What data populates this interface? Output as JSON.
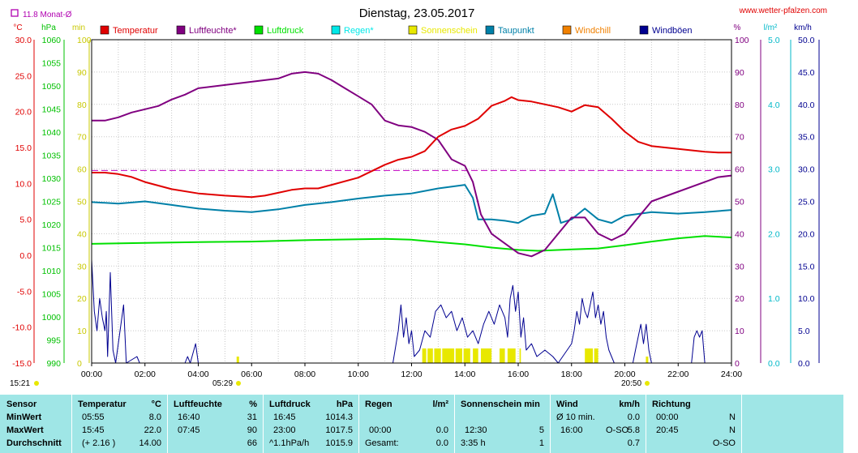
{
  "title": "Dienstag, 23.05.2017",
  "site": "www.wetter-pfalzen.com",
  "month_avg": "11.8 Monat-Ø",
  "unit_labels": {
    "celsius": "°C",
    "hpa": "hPa",
    "min": "min",
    "percent": "%",
    "lm2": "l/m²",
    "kmh": "km/h"
  },
  "legend": [
    {
      "label": "Temperatur",
      "color": "#e00000"
    },
    {
      "label": "Luftfeuchte*",
      "color": "#800080"
    },
    {
      "label": "Luftdruck",
      "color": "#00e000"
    },
    {
      "label": "Regen*",
      "color": "#00e8e8"
    },
    {
      "label": "Sonnenschein",
      "color": "#e8e800"
    },
    {
      "label": "Taupunkt",
      "color": "#0080a8"
    },
    {
      "label": "Windchill",
      "color": "#f08000"
    },
    {
      "label": "Windböen",
      "color": "#000090"
    }
  ],
  "sun": {
    "rise": "05:29",
    "set": "20:50",
    "now": "15:21"
  },
  "chart_data": {
    "type": "line",
    "title": "Dienstag, 23.05.2017",
    "x_ticks": [
      "00:00",
      "02:00",
      "04:00",
      "06:00",
      "08:00",
      "10:00",
      "12:00",
      "14:00",
      "16:00",
      "18:00",
      "20:00",
      "22:00",
      "24:00"
    ],
    "xlim": [
      0,
      24
    ],
    "axes": {
      "temperature": {
        "ticks": [
          "30.0",
          "25.0",
          "20.0",
          "15.0",
          "10.0",
          "5.0",
          "0.0",
          "-5.0",
          "-10.0",
          "-15.0"
        ],
        "ylim": [
          -15,
          30
        ]
      },
      "pressure": {
        "ticks": [
          "1060",
          "1055",
          "1050",
          "1045",
          "1040",
          "1035",
          "1030",
          "1025",
          "1020",
          "1015",
          "1010",
          "1005",
          "1000",
          "995",
          "990"
        ],
        "ylim": [
          990,
          1060
        ]
      },
      "sun_min": {
        "ticks": [
          "100",
          "90",
          "80",
          "70",
          "60",
          "50",
          "40",
          "30",
          "20",
          "10",
          "0"
        ],
        "ylim": [
          0,
          100
        ]
      },
      "humidity": {
        "ticks": [
          "100",
          "90",
          "80",
          "70",
          "60",
          "50",
          "40",
          "30",
          "20",
          "10",
          "0"
        ],
        "ylim": [
          0,
          100
        ]
      },
      "rain": {
        "ticks": [
          "5.0",
          "4.0",
          "3.0",
          "2.0",
          "1.0",
          "0.0"
        ],
        "ylim": [
          0,
          5
        ]
      },
      "wind": {
        "ticks": [
          "50.0",
          "45.0",
          "40.0",
          "35.0",
          "30.0",
          "25.0",
          "20.0",
          "15.0",
          "10.0",
          "5.0",
          "0.0"
        ],
        "ylim": [
          0,
          50
        ]
      }
    },
    "month_avg_temperature": 11.8,
    "series": [
      {
        "name": "Temperatur",
        "axis": "temperature",
        "color": "#e00000",
        "points": [
          [
            0,
            11.5
          ],
          [
            0.5,
            11.5
          ],
          [
            1,
            11.3
          ],
          [
            1.5,
            10.9
          ],
          [
            2,
            10.2
          ],
          [
            3,
            9.2
          ],
          [
            4,
            8.6
          ],
          [
            5,
            8.3
          ],
          [
            6,
            8.1
          ],
          [
            6.5,
            8.3
          ],
          [
            7,
            8.7
          ],
          [
            7.5,
            9.1
          ],
          [
            8,
            9.3
          ],
          [
            8.5,
            9.3
          ],
          [
            9,
            9.8
          ],
          [
            10,
            10.8
          ],
          [
            11,
            12.6
          ],
          [
            11.5,
            13.3
          ],
          [
            12,
            13.7
          ],
          [
            12.5,
            14.5
          ],
          [
            13,
            16.5
          ],
          [
            13.5,
            17.5
          ],
          [
            14,
            18.0
          ],
          [
            14.5,
            19.0
          ],
          [
            15,
            20.8
          ],
          [
            15.5,
            21.5
          ],
          [
            15.75,
            22.0
          ],
          [
            16,
            21.6
          ],
          [
            16.5,
            21.4
          ],
          [
            17,
            21.0
          ],
          [
            17.5,
            20.6
          ],
          [
            18,
            20.0
          ],
          [
            18.5,
            20.9
          ],
          [
            19,
            20.6
          ],
          [
            19.5,
            19.0
          ],
          [
            20,
            17.2
          ],
          [
            20.5,
            15.8
          ],
          [
            21,
            15.2
          ],
          [
            22,
            14.8
          ],
          [
            23,
            14.4
          ],
          [
            23.5,
            14.3
          ],
          [
            24,
            14.3
          ]
        ]
      },
      {
        "name": "Luftfeuchte*",
        "axis": "humidity",
        "color": "#800080",
        "points": [
          [
            0,
            75
          ],
          [
            0.5,
            75
          ],
          [
            1,
            76
          ],
          [
            1.5,
            77.5
          ],
          [
            2,
            78.5
          ],
          [
            2.5,
            79.5
          ],
          [
            3,
            81.5
          ],
          [
            3.5,
            83
          ],
          [
            4,
            85
          ],
          [
            5,
            86
          ],
          [
            6,
            87
          ],
          [
            7,
            88
          ],
          [
            7.5,
            89.5
          ],
          [
            8,
            90
          ],
          [
            8.5,
            89.5
          ],
          [
            9,
            87.5
          ],
          [
            9.5,
            85
          ],
          [
            10,
            82.5
          ],
          [
            10.5,
            80
          ],
          [
            11,
            75
          ],
          [
            11.5,
            73.5
          ],
          [
            12,
            73
          ],
          [
            12.5,
            71.5
          ],
          [
            13,
            69
          ],
          [
            13.5,
            63
          ],
          [
            14,
            61
          ],
          [
            14.3,
            56
          ],
          [
            14.6,
            46
          ],
          [
            15,
            40
          ],
          [
            15.5,
            37
          ],
          [
            16,
            34
          ],
          [
            16.5,
            33
          ],
          [
            17,
            35
          ],
          [
            17.5,
            40
          ],
          [
            18,
            45
          ],
          [
            18.5,
            45
          ],
          [
            19,
            40
          ],
          [
            19.5,
            38
          ],
          [
            20,
            40
          ],
          [
            20.5,
            45
          ],
          [
            21,
            50
          ],
          [
            22,
            53
          ],
          [
            23,
            56
          ],
          [
            23.5,
            57.5
          ],
          [
            24,
            58
          ]
        ]
      },
      {
        "name": "Luftdruck",
        "axis": "pressure",
        "color": "#00e000",
        "points": [
          [
            0,
            1015.8
          ],
          [
            2,
            1016.0
          ],
          [
            4,
            1016.2
          ],
          [
            6,
            1016.3
          ],
          [
            8,
            1016.6
          ],
          [
            10,
            1016.8
          ],
          [
            11,
            1016.9
          ],
          [
            12,
            1016.7
          ],
          [
            13,
            1016.2
          ],
          [
            14,
            1015.7
          ],
          [
            15,
            1015.0
          ],
          [
            16,
            1014.5
          ],
          [
            16.75,
            1014.3
          ],
          [
            18,
            1014.6
          ],
          [
            19,
            1014.8
          ],
          [
            20,
            1015.5
          ],
          [
            21,
            1016.3
          ],
          [
            22,
            1017.0
          ],
          [
            23,
            1017.5
          ],
          [
            24,
            1017.2
          ]
        ]
      },
      {
        "name": "Taupunkt",
        "axis": "temperature",
        "color": "#0080a8",
        "points": [
          [
            0,
            7.4
          ],
          [
            1,
            7.2
          ],
          [
            2,
            7.5
          ],
          [
            3,
            7.0
          ],
          [
            4,
            6.5
          ],
          [
            5,
            6.2
          ],
          [
            6,
            6.0
          ],
          [
            7,
            6.4
          ],
          [
            8,
            7.0
          ],
          [
            9,
            7.4
          ],
          [
            10,
            7.9
          ],
          [
            11,
            8.3
          ],
          [
            12,
            8.6
          ],
          [
            13,
            9.3
          ],
          [
            14,
            9.8
          ],
          [
            14.3,
            8.0
          ],
          [
            14.5,
            5.0
          ],
          [
            15,
            5.0
          ],
          [
            15.5,
            4.8
          ],
          [
            16,
            4.5
          ],
          [
            16.5,
            5.5
          ],
          [
            17,
            5.8
          ],
          [
            17.3,
            8.5
          ],
          [
            17.6,
            4.5
          ],
          [
            18,
            5.0
          ],
          [
            18.5,
            6.5
          ],
          [
            19,
            5.0
          ],
          [
            19.5,
            4.5
          ],
          [
            20,
            5.5
          ],
          [
            21,
            6.0
          ],
          [
            22,
            5.8
          ],
          [
            23,
            6.0
          ],
          [
            24,
            6.3
          ]
        ]
      },
      {
        "name": "Windböen",
        "axis": "wind",
        "color": "#000090",
        "points": [
          [
            0,
            16
          ],
          [
            0.1,
            8
          ],
          [
            0.2,
            5
          ],
          [
            0.3,
            10
          ],
          [
            0.4,
            7
          ],
          [
            0.5,
            5
          ],
          [
            0.55,
            8
          ],
          [
            0.6,
            1
          ],
          [
            0.7,
            14
          ],
          [
            0.8,
            2
          ],
          [
            0.9,
            0
          ],
          [
            1.2,
            9
          ],
          [
            1.3,
            0
          ],
          [
            1.7,
            1
          ],
          [
            1.8,
            0
          ],
          [
            3.5,
            0
          ],
          [
            3.6,
            1
          ],
          [
            3.7,
            0
          ],
          [
            3.9,
            3
          ],
          [
            4.0,
            0
          ],
          [
            11.3,
            0
          ],
          [
            11.5,
            5
          ],
          [
            11.6,
            9
          ],
          [
            11.7,
            4
          ],
          [
            11.8,
            7
          ],
          [
            11.9,
            3
          ],
          [
            12.0,
            5
          ],
          [
            12.1,
            1
          ],
          [
            12.3,
            2
          ],
          [
            12.5,
            5
          ],
          [
            12.7,
            4
          ],
          [
            12.9,
            8
          ],
          [
            13.1,
            9
          ],
          [
            13.3,
            7
          ],
          [
            13.5,
            8
          ],
          [
            13.7,
            5
          ],
          [
            13.9,
            7
          ],
          [
            14.1,
            4
          ],
          [
            14.3,
            5
          ],
          [
            14.5,
            3
          ],
          [
            14.7,
            6
          ],
          [
            14.9,
            8
          ],
          [
            15.1,
            6
          ],
          [
            15.3,
            9
          ],
          [
            15.5,
            7
          ],
          [
            15.6,
            4
          ],
          [
            15.7,
            10
          ],
          [
            15.8,
            12
          ],
          [
            15.9,
            8
          ],
          [
            16.0,
            11
          ],
          [
            16.1,
            4
          ],
          [
            16.2,
            7
          ],
          [
            16.3,
            2
          ],
          [
            16.5,
            3
          ],
          [
            16.7,
            1
          ],
          [
            17.0,
            2
          ],
          [
            17.3,
            1
          ],
          [
            17.5,
            0
          ],
          [
            18,
            3
          ],
          [
            18.1,
            5
          ],
          [
            18.2,
            8
          ],
          [
            18.3,
            6
          ],
          [
            18.4,
            10
          ],
          [
            18.5,
            8
          ],
          [
            18.6,
            7
          ],
          [
            18.7,
            9
          ],
          [
            18.8,
            11
          ],
          [
            18.9,
            7
          ],
          [
            19.0,
            9
          ],
          [
            19.1,
            6
          ],
          [
            19.2,
            8
          ],
          [
            19.3,
            4
          ],
          [
            19.4,
            2
          ],
          [
            19.5,
            1
          ],
          [
            19.6,
            0
          ],
          [
            20.3,
            0
          ],
          [
            20.4,
            2
          ],
          [
            20.6,
            6
          ],
          [
            20.7,
            3
          ],
          [
            20.8,
            6
          ],
          [
            20.9,
            2
          ],
          [
            21.0,
            0
          ],
          [
            22.5,
            0
          ],
          [
            22.6,
            4
          ],
          [
            22.7,
            5
          ],
          [
            22.8,
            4
          ],
          [
            22.9,
            5
          ],
          [
            23.0,
            0
          ],
          [
            24,
            0
          ]
        ]
      }
    ],
    "sunshine_intervals": [
      [
        12.4,
        12.55
      ],
      [
        12.6,
        12.8
      ],
      [
        12.85,
        13.1
      ],
      [
        13.15,
        13.6
      ],
      [
        13.65,
        13.9
      ],
      [
        13.95,
        14.2
      ],
      [
        14.3,
        14.5
      ],
      [
        14.6,
        15.0
      ],
      [
        15.3,
        15.5
      ],
      [
        15.6,
        15.9
      ],
      [
        16.05,
        16.1
      ],
      [
        18.5,
        18.8
      ],
      [
        18.85,
        19.0
      ]
    ]
  },
  "stats": {
    "col1": {
      "header": "Sensor",
      "rows": [
        "MinWert",
        "MaxWert",
        "Durchschnitt"
      ]
    },
    "col2": {
      "header": "Temperatur",
      "unit": "°C",
      "rows": [
        [
          "05:55",
          "8.0"
        ],
        [
          "15:45",
          "22.0"
        ],
        [
          "(+ 2.16 )",
          "14.00"
        ]
      ]
    },
    "col3": {
      "header": "Luftfeuchte",
      "unit": "%",
      "rows": [
        [
          "16:40",
          "31"
        ],
        [
          "07:45",
          "90"
        ],
        [
          "",
          "66"
        ]
      ]
    },
    "col4": {
      "header": "Luftdruck",
      "unit": "hPa",
      "rows": [
        [
          "16:45",
          "1014.3"
        ],
        [
          "23:00",
          "1017.5"
        ],
        [
          "^1.1hPa/h",
          "1015.9"
        ]
      ]
    },
    "col5": {
      "header": "Regen",
      "unit": "l/m²",
      "rows": [
        [
          "",
          ""
        ],
        [
          "00:00",
          "0.0"
        ],
        [
          "Gesamt:",
          "0.0"
        ]
      ]
    },
    "col6": {
      "header": "Sonnenschein min",
      "unit": "",
      "rows": [
        [
          "",
          ""
        ],
        [
          "12:30",
          "5"
        ],
        [
          "3:35 h",
          "1"
        ]
      ]
    },
    "col7": {
      "header": "Wind",
      "unit": "km/h",
      "rows": [
        [
          "Ø 10 min.",
          "",
          "0.0"
        ],
        [
          "16:00",
          "O-SO",
          "5.8"
        ],
        [
          "",
          "",
          "0.7"
        ]
      ]
    },
    "col8": {
      "header": "Richtung",
      "unit": "",
      "rows": [
        [
          "00:00",
          "N"
        ],
        [
          "20:45",
          "N"
        ],
        [
          "",
          "O-SO"
        ]
      ]
    }
  }
}
